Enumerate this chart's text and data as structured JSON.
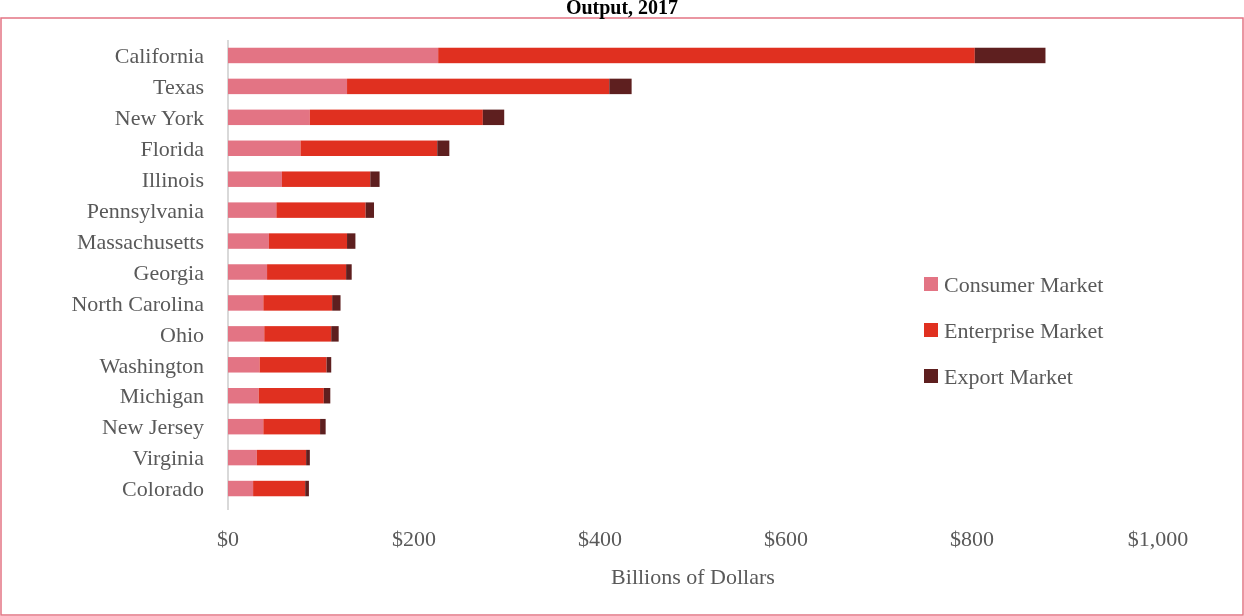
{
  "chart_data": {
    "type": "bar",
    "orientation": "horizontal",
    "stacked": true,
    "title": "Output, 2017",
    "xlabel": "Billions of Dollars",
    "categories": [
      "California",
      "Texas",
      "New York",
      "Florida",
      "Illinois",
      "Pennsylvania",
      "Massachusetts",
      "Georgia",
      "North Carolina",
      "Ohio",
      "Washington",
      "Michigan",
      "New Jersey",
      "Virginia",
      "Colorado"
    ],
    "series": [
      {
        "name": "Consumer Market",
        "color": "#e37484",
        "values": [
          226,
          128,
          88,
          78,
          58,
          52,
          44,
          42,
          38,
          39,
          34,
          33,
          38,
          31,
          27
        ]
      },
      {
        "name": "Enterprise Market",
        "color": "#e03020",
        "values": [
          577,
          282,
          186,
          147,
          95,
          96,
          84,
          85,
          74,
          72,
          72,
          70,
          61,
          53,
          56
        ]
      },
      {
        "name": "Export Market",
        "color": "#5e1f1f",
        "values": [
          76,
          24,
          23,
          13,
          10,
          9,
          9,
          6,
          9,
          8,
          5,
          7,
          6,
          4,
          4
        ]
      }
    ],
    "xlim": [
      0,
      1000
    ],
    "xticks": [
      {
        "value": 0,
        "label": "$0"
      },
      {
        "value": 200,
        "label": "$200"
      },
      {
        "value": 400,
        "label": "$400"
      },
      {
        "value": 600,
        "label": "$600"
      },
      {
        "value": 800,
        "label": "$800"
      },
      {
        "value": 1000,
        "label": "$1,000"
      }
    ],
    "legend": "right",
    "grid": false
  }
}
